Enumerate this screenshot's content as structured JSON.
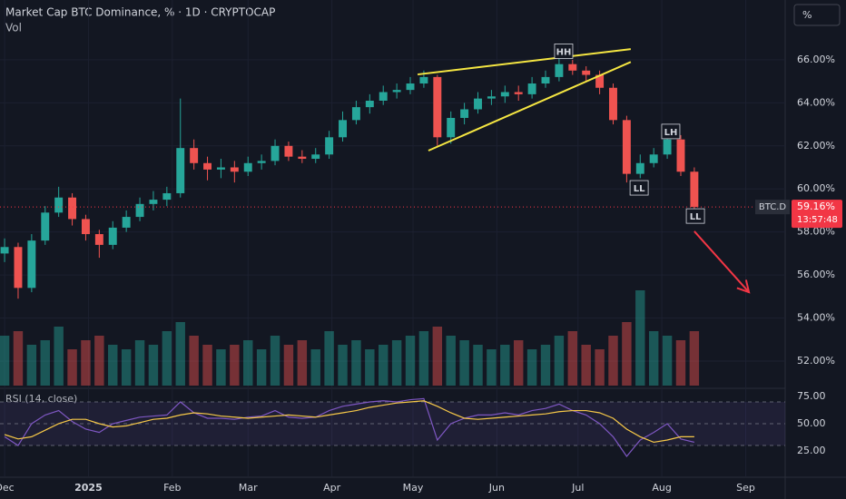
{
  "chart_data": {
    "type": "candlestick",
    "title": "Market Cap BTC Dominance, % · 1D · CRYPTOCAP",
    "subtitle": "Vol",
    "scale_button": "%",
    "x": [
      0,
      5,
      10,
      15,
      20,
      25,
      30,
      35,
      40,
      45,
      50,
      55,
      60,
      65,
      70,
      75,
      80,
      85,
      90,
      95,
      100,
      105,
      110,
      115,
      120,
      125,
      130,
      135,
      140,
      145,
      150,
      155,
      160,
      165,
      170,
      175,
      180,
      185,
      190,
      195,
      200,
      205,
      210,
      215,
      220,
      225,
      230,
      235,
      240,
      245,
      250,
      255
    ],
    "open": [
      57.0,
      57.3,
      55.4,
      57.6,
      58.9,
      59.6,
      58.6,
      57.9,
      57.4,
      58.2,
      58.7,
      59.3,
      59.5,
      59.8,
      61.9,
      61.2,
      60.9,
      61.0,
      60.8,
      61.2,
      61.3,
      62.0,
      61.5,
      61.4,
      61.6,
      62.4,
      63.2,
      63.8,
      64.1,
      64.5,
      64.6,
      64.9,
      65.2,
      62.4,
      63.3,
      63.7,
      64.2,
      64.3,
      64.5,
      64.4,
      64.9,
      65.2,
      65.8,
      65.5,
      65.3,
      64.7,
      63.2,
      60.7,
      61.2,
      61.6,
      62.3,
      60.8
    ],
    "high": [
      57.7,
      57.5,
      57.9,
      59.2,
      60.1,
      59.8,
      58.8,
      58.1,
      58.5,
      59.0,
      59.6,
      59.9,
      60.1,
      64.2,
      62.3,
      61.5,
      61.4,
      61.3,
      61.5,
      61.6,
      62.3,
      62.2,
      61.8,
      61.9,
      62.7,
      63.6,
      64.1,
      64.4,
      64.8,
      64.9,
      65.2,
      65.5,
      65.3,
      63.6,
      64.0,
      64.5,
      64.6,
      64.8,
      64.8,
      65.2,
      65.5,
      66.1,
      66.0,
      65.7,
      65.5,
      64.9,
      63.4,
      61.6,
      61.9,
      62.6,
      62.5,
      61.0
    ],
    "low": [
      56.6,
      54.9,
      55.2,
      57.4,
      58.7,
      58.3,
      57.6,
      56.8,
      57.2,
      58.0,
      58.5,
      59.0,
      59.2,
      59.6,
      60.9,
      60.4,
      60.5,
      60.3,
      60.6,
      60.9,
      61.1,
      61.3,
      61.2,
      61.2,
      61.4,
      62.2,
      63.0,
      63.5,
      63.9,
      64.2,
      64.4,
      64.7,
      62.0,
      62.1,
      63.0,
      63.5,
      63.9,
      64.0,
      64.1,
      64.2,
      64.7,
      65.0,
      65.3,
      65.0,
      64.4,
      63.0,
      60.3,
      60.5,
      61.0,
      61.4,
      60.6,
      58.9
    ],
    "close": [
      57.3,
      55.4,
      57.6,
      58.9,
      59.6,
      58.6,
      57.9,
      57.4,
      58.2,
      58.7,
      59.3,
      59.5,
      59.8,
      61.9,
      61.2,
      60.9,
      61.0,
      60.8,
      61.2,
      61.3,
      62.0,
      61.5,
      61.4,
      61.6,
      62.4,
      63.2,
      63.8,
      64.1,
      64.5,
      64.6,
      64.9,
      65.2,
      62.4,
      63.3,
      63.7,
      64.2,
      64.3,
      64.5,
      64.4,
      64.9,
      65.2,
      65.8,
      65.5,
      65.3,
      64.7,
      63.2,
      60.7,
      61.2,
      61.6,
      62.3,
      60.8,
      59.16
    ],
    "volume": [
      55,
      60,
      45,
      50,
      65,
      40,
      50,
      55,
      45,
      40,
      50,
      45,
      60,
      70,
      55,
      45,
      40,
      45,
      50,
      40,
      55,
      45,
      50,
      40,
      60,
      45,
      50,
      40,
      45,
      50,
      55,
      60,
      65,
      55,
      50,
      45,
      40,
      45,
      50,
      40,
      45,
      55,
      60,
      45,
      40,
      55,
      70,
      105,
      60,
      55,
      50,
      60
    ],
    "up_color": "#26a69a",
    "down_color": "#ef5350",
    "xlim": [
      -1.7,
      288.6
    ],
    "xticks": [
      {
        "value": 0,
        "label": "Dec"
      },
      {
        "value": 31,
        "label": "2025"
      },
      {
        "value": 62,
        "label": "Feb"
      },
      {
        "value": 90,
        "label": "Mar"
      },
      {
        "value": 121,
        "label": "Apr"
      },
      {
        "value": 151,
        "label": "May"
      },
      {
        "value": 182,
        "label": "Jun"
      },
      {
        "value": 212,
        "label": "Jul"
      },
      {
        "value": 243,
        "label": "Aug"
      },
      {
        "value": 274,
        "label": "Sep"
      }
    ],
    "ylim": [
      50.86,
      68.78
    ],
    "yticks": [
      {
        "value": 52,
        "label": "52.00%"
      },
      {
        "value": 54,
        "label": "54.00%"
      },
      {
        "value": 56,
        "label": "56.00%"
      },
      {
        "value": 58,
        "label": "58.00%"
      },
      {
        "value": 60,
        "label": "60.00%"
      },
      {
        "value": 62,
        "label": "62.00%"
      },
      {
        "value": 64,
        "label": "64.00%"
      },
      {
        "value": 66,
        "label": "66.00%"
      }
    ],
    "symbol": "BTC.D",
    "last_value": 59.16,
    "last_value_label": "59.16%",
    "countdown": "13:57:48",
    "annotations": [
      {
        "text": "HH",
        "x": 206.7,
        "y": 66.4
      },
      {
        "text": "LH",
        "x": 246.3,
        "y": 62.67
      },
      {
        "text": "LL",
        "x": 234.6,
        "y": 60.05
      },
      {
        "text": "LL",
        "x": 255.4,
        "y": 58.74
      }
    ],
    "trendlines": [
      {
        "x": [
          152.7,
          231.5
        ],
        "y": [
          65.32,
          66.5
        ],
        "color": "#f5e642"
      },
      {
        "x": [
          156.7,
          231.5
        ],
        "y": [
          61.78,
          65.9
        ],
        "color": "#f5e642"
      }
    ],
    "arrow": {
      "x": [
        255,
        275.2
      ],
      "y": [
        58.03,
        55.2
      ],
      "color": "#f23645"
    },
    "rsi": {
      "type": "line",
      "title": "RSI (14, close)",
      "values": [
        38,
        30,
        50,
        58,
        62,
        52,
        45,
        42,
        50,
        53,
        56,
        57,
        58,
        70,
        60,
        55,
        55,
        54,
        56,
        57,
        62,
        56,
        55,
        56,
        62,
        66,
        68,
        70,
        71,
        70,
        72,
        73,
        35,
        50,
        55,
        58,
        58,
        60,
        58,
        62,
        64,
        68,
        62,
        58,
        50,
        38,
        20,
        35,
        42,
        50,
        36,
        33
      ],
      "ma": [
        40,
        36,
        38,
        44,
        50,
        54,
        54,
        50,
        47,
        48,
        51,
        54,
        55,
        58,
        60,
        59,
        57,
        56,
        55,
        56,
        57,
        58,
        57,
        56,
        58,
        60,
        62,
        65,
        67,
        69,
        70,
        71,
        66,
        60,
        55,
        54,
        55,
        56,
        57,
        58,
        59,
        61,
        62,
        62,
        60,
        55,
        45,
        38,
        33,
        35,
        38,
        38
      ],
      "color": "#7e57c2",
      "ma_color": "#f7c948",
      "ylim": [
        1.7,
        80.8
      ],
      "yticks": [
        {
          "value": 25,
          "label": "25.00"
        },
        {
          "value": 50,
          "label": "50.00"
        },
        {
          "value": 75,
          "label": "75.00"
        }
      ],
      "levels": [
        70,
        50,
        30
      ]
    }
  }
}
